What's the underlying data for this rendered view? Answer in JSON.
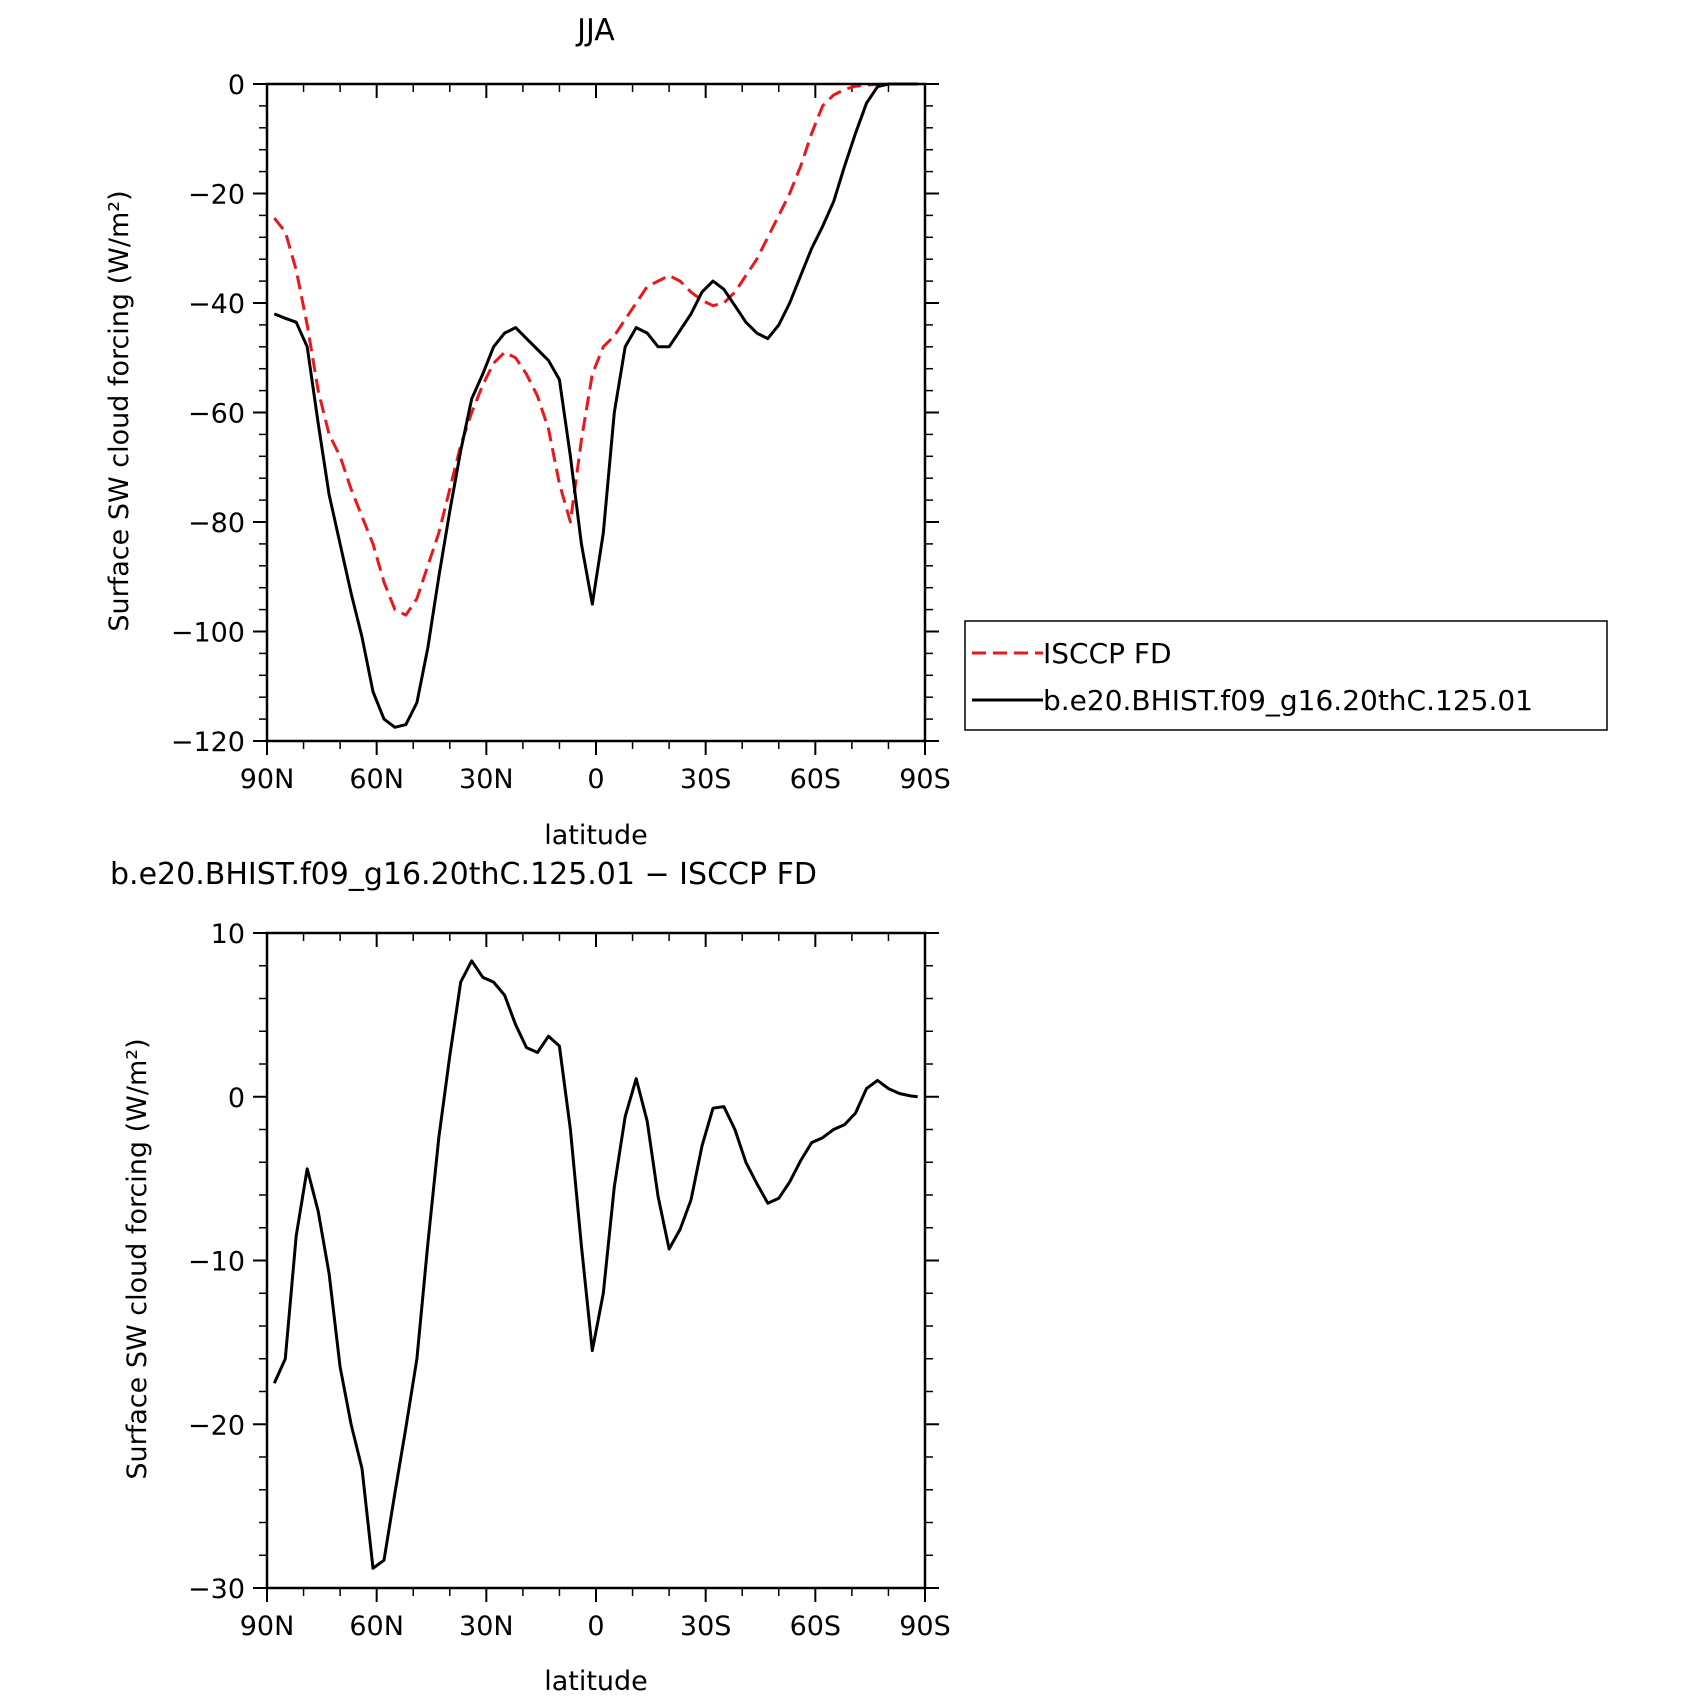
{
  "chart_data": [
    {
      "type": "line",
      "title": "JJA",
      "xlabel": "latitude",
      "ylabel": "Surface SW cloud forcing (W/m²)",
      "xlim": [
        90,
        -90
      ],
      "ylim": [
        -120,
        0
      ],
      "x_ticks": [
        90,
        60,
        30,
        0,
        -30,
        -60,
        -90
      ],
      "x_tick_labels": [
        "90N",
        "60N",
        "30N",
        "0",
        "30S",
        "60S",
        "90S"
      ],
      "y_ticks": [
        0,
        -20,
        -40,
        -60,
        -80,
        -100,
        -120
      ],
      "y_tick_labels": [
        "0",
        "−20",
        "−40",
        "−60",
        "−80",
        "−100",
        "−120"
      ],
      "legend": {
        "placement": "right",
        "entries": [
          "ISCCP FD",
          "b.e20.BHIST.f09_g16.20thC.125.01"
        ]
      },
      "series": [
        {
          "name": "ISCCP FD",
          "color": "#e8191c",
          "dash": true,
          "x": [
            88,
            85,
            82,
            79,
            76,
            73,
            70,
            67,
            64,
            61,
            58,
            55,
            52,
            49,
            46,
            43,
            40,
            37,
            34,
            31,
            28,
            25,
            22,
            19,
            16,
            13,
            10,
            7,
            4,
            1,
            -2,
            -5,
            -8,
            -11,
            -14,
            -17,
            -20,
            -23,
            -26,
            -29,
            -32,
            -35,
            -38,
            -41,
            -44,
            -47,
            -50,
            -53,
            -56,
            -59,
            -62,
            -65,
            -68,
            -71,
            -74,
            -77,
            -80,
            -83,
            -86,
            -88
          ],
          "y": [
            -24.5,
            -27,
            -34,
            -44,
            -56,
            -64,
            -68,
            -74,
            -79,
            -84,
            -91,
            -96,
            -97,
            -94,
            -88,
            -82,
            -74,
            -66,
            -60,
            -55,
            -51,
            -49,
            -50,
            -53,
            -57,
            -63,
            -73,
            -80,
            -65,
            -53,
            -48,
            -46,
            -43,
            -40,
            -37,
            -36,
            -35,
            -36,
            -38,
            -39.5,
            -40.5,
            -40,
            -38,
            -35,
            -32,
            -28,
            -24,
            -20,
            -15,
            -9,
            -4,
            -2,
            -1,
            -0.4,
            -0.2,
            -0.1,
            0,
            0,
            0,
            0
          ]
        },
        {
          "name": "b.e20.BHIST.f09_g16.20thC.125.01",
          "color": "#000000",
          "dash": false,
          "x": [
            88,
            85,
            82,
            79,
            76,
            73,
            70,
            67,
            64,
            61,
            58,
            55,
            52,
            49,
            46,
            43,
            40,
            37,
            34,
            31,
            28,
            25,
            22,
            19,
            16,
            13,
            10,
            7,
            4,
            1,
            -2,
            -5,
            -8,
            -11,
            -14,
            -17,
            -20,
            -23,
            -26,
            -29,
            -32,
            -35,
            -38,
            -41,
            -44,
            -47,
            -50,
            -53,
            -56,
            -59,
            -62,
            -65,
            -68,
            -71,
            -74,
            -77,
            -80,
            -83,
            -86,
            -88
          ],
          "y": [
            -42,
            -42.8,
            -43.5,
            -48,
            -62,
            -75,
            -84,
            -93,
            -101,
            -111,
            -116,
            -117.5,
            -117,
            -113,
            -103,
            -90,
            -78,
            -67,
            -57.5,
            -53,
            -48,
            -45.5,
            -44.5,
            -46.5,
            -48.5,
            -50.5,
            -54,
            -68,
            -84,
            -95,
            -82,
            -60,
            -48,
            -44.5,
            -45.5,
            -48,
            -48,
            -45,
            -42,
            -38,
            -36,
            -37.5,
            -40.5,
            -43.5,
            -45.5,
            -46.5,
            -44,
            -40,
            -35,
            -30,
            -26,
            -21.5,
            -15,
            -9,
            -3.5,
            -0.5,
            0,
            0,
            0,
            0
          ]
        }
      ]
    },
    {
      "type": "line",
      "title": "b.e20.BHIST.f09_g16.20thC.125.01 − ISCCP FD",
      "xlabel": "latitude",
      "ylabel": "Surface SW cloud forcing (W/m²)",
      "xlim": [
        90,
        -90
      ],
      "ylim": [
        -30,
        10
      ],
      "x_ticks": [
        90,
        60,
        30,
        0,
        -30,
        -60,
        -90
      ],
      "x_tick_labels": [
        "90N",
        "60N",
        "30N",
        "0",
        "30S",
        "60S",
        "90S"
      ],
      "y_ticks": [
        10,
        0,
        -10,
        -20,
        -30
      ],
      "y_tick_labels": [
        "10",
        "0",
        "−10",
        "−20",
        "−30"
      ],
      "series": [
        {
          "color": "#000000",
          "dash": false,
          "x": [
            88,
            85,
            82,
            79,
            76,
            73,
            70,
            67,
            64,
            61,
            58,
            55,
            52,
            49,
            46,
            43,
            40,
            37,
            34,
            31,
            28,
            25,
            22,
            19,
            16,
            13,
            10,
            7,
            4,
            1,
            -2,
            -5,
            -8,
            -11,
            -14,
            -17,
            -20,
            -23,
            -26,
            -29,
            -32,
            -35,
            -38,
            -41,
            -44,
            -47,
            -50,
            -53,
            -56,
            -59,
            -62,
            -65,
            -68,
            -71,
            -74,
            -77,
            -80,
            -83,
            -86,
            -88
          ],
          "y": [
            -17.5,
            -16,
            -8.5,
            -4.4,
            -7,
            -10.8,
            -16.5,
            -20,
            -22.7,
            -28.8,
            -28.3,
            -24.2,
            -20.2,
            -16,
            -9,
            -2.5,
            2.5,
            7,
            8.3,
            7.3,
            7,
            6.2,
            4.4,
            3,
            2.7,
            3.7,
            3.1,
            -2,
            -9.1,
            -15.5,
            -12,
            -5.5,
            -1.2,
            1.1,
            -1.5,
            -6.1,
            -9.3,
            -8.1,
            -6.3,
            -3,
            -0.7,
            -0.6,
            -2,
            -4,
            -5.3,
            -6.5,
            -6.2,
            -5.2,
            -3.9,
            -2.8,
            -2.5,
            -2,
            -1.7,
            -1,
            0.5,
            1,
            0.5,
            0.2,
            0.05,
            0
          ]
        }
      ]
    }
  ]
}
